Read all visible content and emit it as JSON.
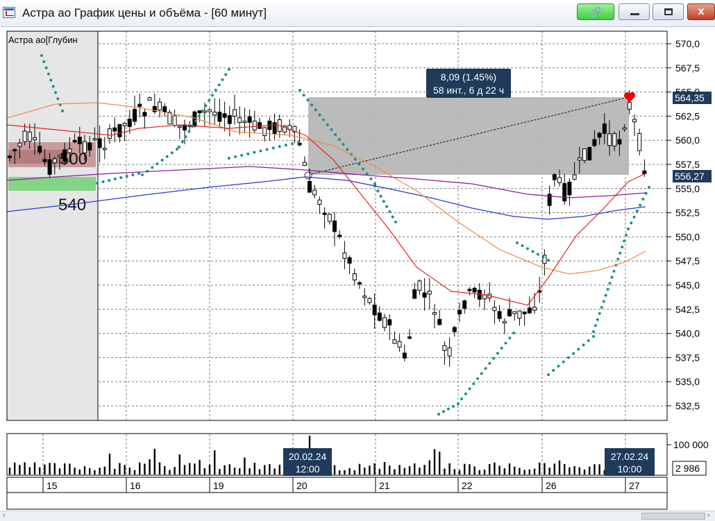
{
  "window": {
    "title": "Астра ао График цены и объёма - [60 минут]",
    "close_glyph": "x",
    "link_icon": "chain-link-icon"
  },
  "chart": {
    "depth_label": "Астра ао[Глубин",
    "depth_values": [
      "500",
      "540"
    ],
    "measure": {
      "line1": "8,09 (1.45%)",
      "line2": "58 инт., 6 д 22 ч"
    },
    "price_ticks": [
      "570,0",
      "567,5",
      "565,0",
      "562,5",
      "560,0",
      "557,5",
      "555,0",
      "552,5",
      "550,0",
      "547,5",
      "545,0",
      "542,5",
      "540,0",
      "537,5",
      "535,0",
      "532,5"
    ],
    "price_marker_high": "564,35",
    "price_marker_last": "556,27",
    "volume_tick": "100 000",
    "volume_last": "2 986",
    "date_marker_1": {
      "date": "20.02.24",
      "time": "12:00"
    },
    "date_marker_2": {
      "date": "27.02.24",
      "time": "10:00"
    },
    "dates": [
      "15",
      "16",
      "19",
      "20",
      "21",
      "22",
      "26",
      "27"
    ],
    "colors": {
      "ma_fast": "#e62020",
      "ma_mid": "#f08a40",
      "ma_slow": "#8c1e9a",
      "ma_long": "#2638d0",
      "sar": "#1a8f8a",
      "measure_box": "#b4b4b4",
      "measure_label": "#1f3a5a"
    }
  }
}
